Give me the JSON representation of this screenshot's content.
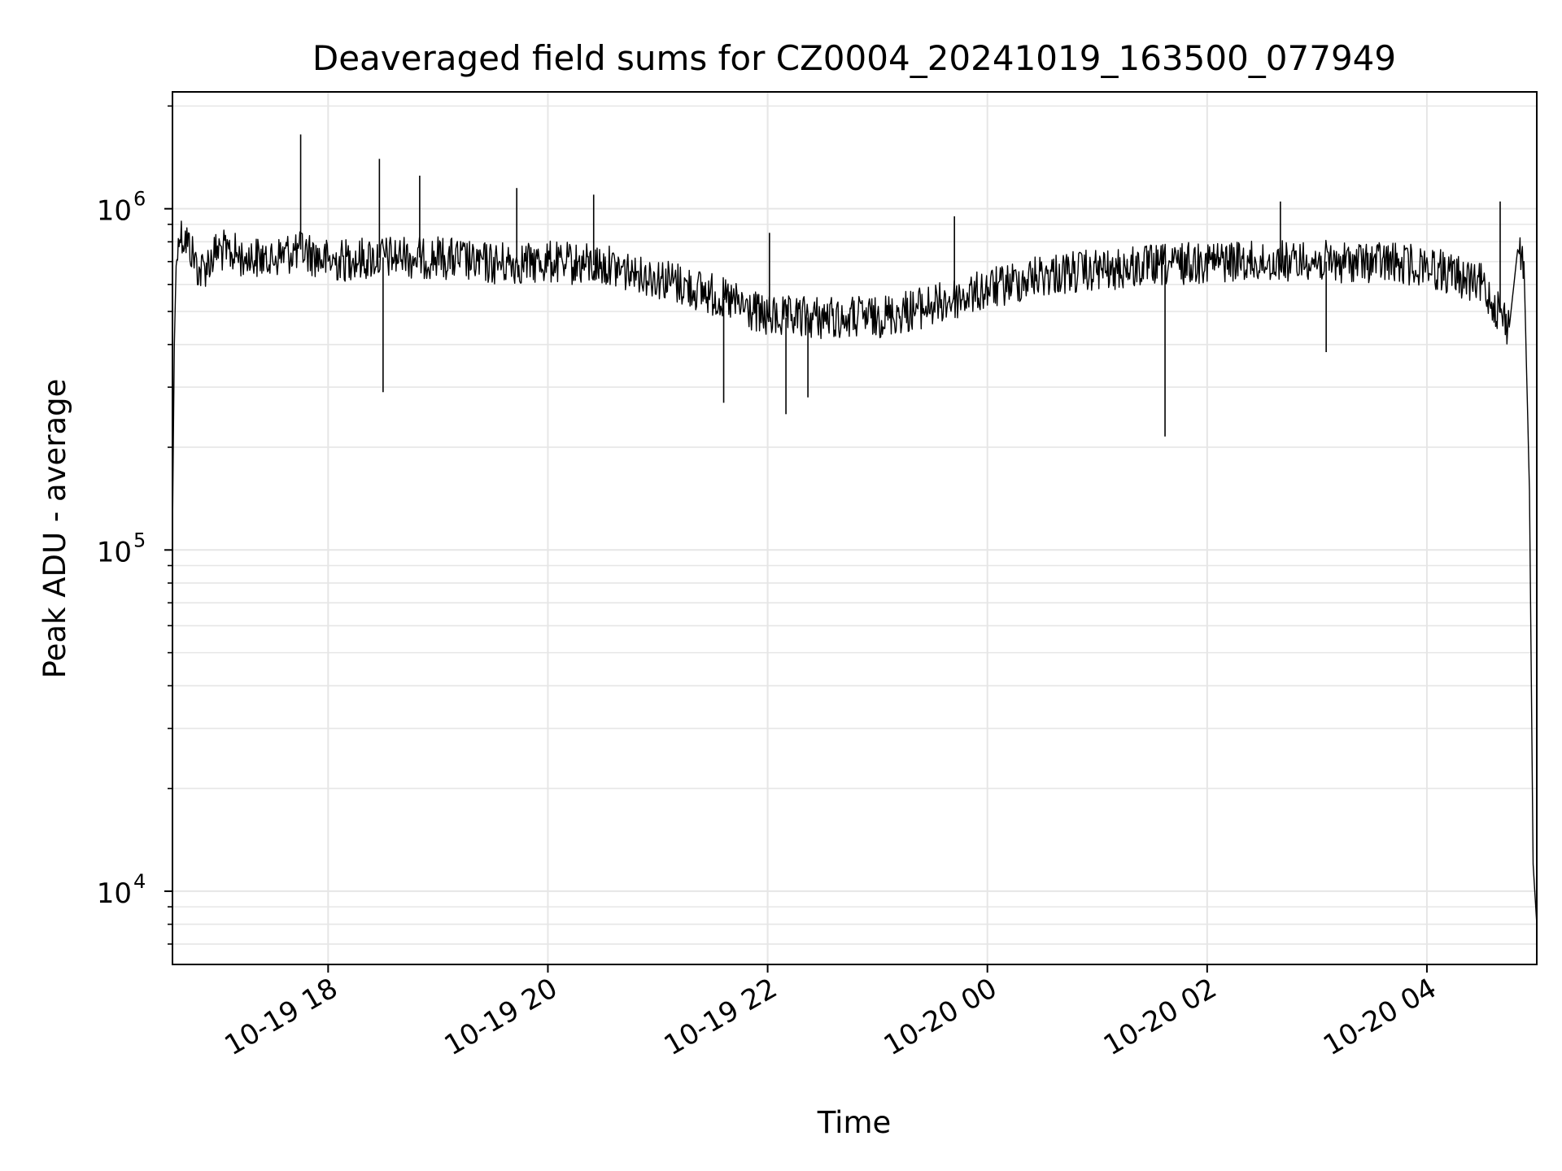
{
  "chart_data": {
    "type": "line",
    "title": "Deaveraged field sums for CZ0004_20241019_163500_077949",
    "xlabel": "Time",
    "ylabel": "Peak ADU - average",
    "yscale": "log",
    "ylim": [
      6100,
      2200000
    ],
    "xlim": [
      "2024-10-19 16:35",
      "2024-10-20 05:00"
    ],
    "grid": true,
    "legend": "none",
    "line_color": "#000000",
    "grid_color": "#e6e6e6",
    "x_ticks": [
      {
        "at": "2024-10-19 18:00",
        "label": "10-19 18"
      },
      {
        "at": "2024-10-19 20:00",
        "label": "10-19 20"
      },
      {
        "at": "2024-10-19 22:00",
        "label": "10-19 22"
      },
      {
        "at": "2024-10-20 00:00",
        "label": "10-20 00"
      },
      {
        "at": "2024-10-20 02:00",
        "label": "10-20 02"
      },
      {
        "at": "2024-10-20 04:00",
        "label": "10-20 04"
      }
    ],
    "y_ticks": [
      {
        "value": 10000,
        "base": "10",
        "exp": "4"
      },
      {
        "value": 100000,
        "base": "10",
        "exp": "5"
      },
      {
        "value": 1000000,
        "base": "10",
        "exp": "6"
      }
    ],
    "series": [
      {
        "x": [
          "2024-10-19 16:35",
          "2024-10-19 16:36",
          "2024-10-19 16:37",
          "2024-10-19 16:39",
          "2024-10-19 16:42",
          "2024-10-19 16:45",
          "2024-10-19 16:50",
          "2024-10-19 17:00",
          "2024-10-19 17:15",
          "2024-10-19 17:30",
          "2024-10-19 17:45",
          "2024-10-19 18:00",
          "2024-10-19 18:30",
          "2024-10-19 19:00",
          "2024-10-19 19:30",
          "2024-10-19 20:00",
          "2024-10-19 20:30",
          "2024-10-19 21:00",
          "2024-10-19 21:30",
          "2024-10-19 22:00",
          "2024-10-19 22:30",
          "2024-10-19 23:00",
          "2024-10-19 23:30",
          "2024-10-20 00:00",
          "2024-10-20 00:30",
          "2024-10-20 01:00",
          "2024-10-20 01:30",
          "2024-10-20 02:00",
          "2024-10-20 02:30",
          "2024-10-20 03:00",
          "2024-10-20 03:30",
          "2024-10-20 04:00",
          "2024-10-20 04:30",
          "2024-10-20 04:45",
          "2024-10-20 04:50",
          "2024-10-20 04:53",
          "2024-10-20 04:56",
          "2024-10-20 04:58",
          "2024-10-20 05:00"
        ],
        "y": [
          110000,
          400000,
          680000,
          840000,
          820000,
          760000,
          650000,
          760000,
          720000,
          720000,
          760000,
          700000,
          720000,
          720000,
          690000,
          700000,
          680000,
          630000,
          560000,
          480000,
          480000,
          480000,
          520000,
          580000,
          640000,
          660000,
          680000,
          700000,
          700000,
          700000,
          700000,
          680000,
          600000,
          450000,
          800000,
          700000,
          150000,
          12000,
          8000
        ]
      }
    ],
    "spikes_up": [
      {
        "x": "2024-10-19 17:45",
        "y": 1650000
      },
      {
        "x": "2024-10-19 18:28",
        "y": 1400000
      },
      {
        "x": "2024-10-19 18:50",
        "y": 1250000
      },
      {
        "x": "2024-10-19 19:43",
        "y": 1150000
      },
      {
        "x": "2024-10-19 20:25",
        "y": 1100000
      },
      {
        "x": "2024-10-19 22:01",
        "y": 850000
      },
      {
        "x": "2024-10-19 23:42",
        "y": 950000
      },
      {
        "x": "2024-10-20 02:40",
        "y": 1050000
      },
      {
        "x": "2024-10-20 04:40",
        "y": 1050000
      }
    ],
    "spikes_down": [
      {
        "x": "2024-10-19 18:30",
        "y": 290000
      },
      {
        "x": "2024-10-19 21:36",
        "y": 270000
      },
      {
        "x": "2024-10-19 22:10",
        "y": 250000
      },
      {
        "x": "2024-10-19 22:22",
        "y": 280000
      },
      {
        "x": "2024-10-20 01:37",
        "y": 215000
      },
      {
        "x": "2024-10-20 03:05",
        "y": 380000
      }
    ]
  }
}
